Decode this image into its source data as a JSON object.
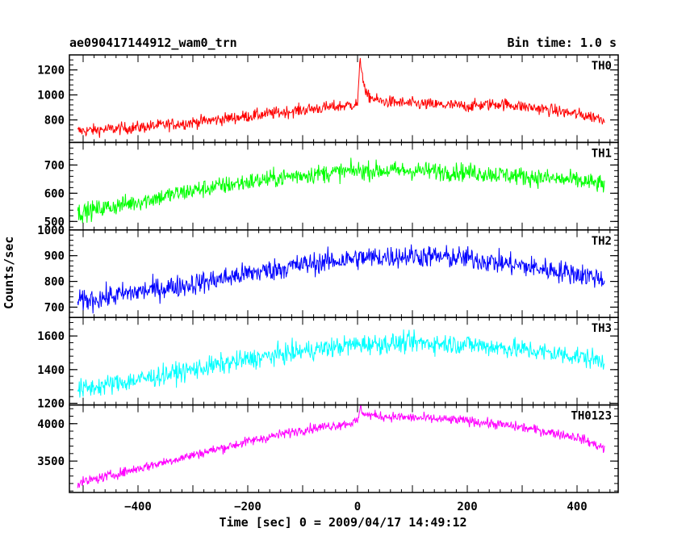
{
  "header": {
    "title": "ae090417144912_wam0_trn",
    "bin_time": "Bin time: 1.0 s"
  },
  "chart_data": {
    "type": "line",
    "xlabel": "Time [sec] 0 = 2009/04/17 14:49:12",
    "ylabel": "Counts/sec",
    "xlim": [
      -525,
      475
    ],
    "x_ticks": [
      -400,
      -200,
      0,
      200,
      400
    ],
    "panels": [
      {
        "name": "TH0",
        "color": "#ff0000",
        "ylim": [
          620,
          1320
        ],
        "y_ticks": [
          800,
          1000,
          1200
        ],
        "x": [
          -510,
          -400,
          -300,
          -200,
          -100,
          -20,
          0,
          5,
          15,
          40,
          100,
          200,
          260,
          350,
          450
        ],
        "values": [
          710,
          740,
          780,
          830,
          880,
          915,
          930,
          1280,
          1000,
          950,
          930,
          910,
          930,
          880,
          810
        ],
        "noise": 45
      },
      {
        "name": "TH1",
        "color": "#00ff00",
        "ylim": [
          470,
          780
        ],
        "y_ticks": [
          500,
          600,
          700
        ],
        "x": [
          -510,
          -400,
          -300,
          -200,
          -100,
          0,
          100,
          200,
          300,
          400,
          450
        ],
        "values": [
          530,
          570,
          610,
          640,
          665,
          680,
          680,
          675,
          660,
          645,
          630
        ],
        "noise": 30
      },
      {
        "name": "TH2",
        "color": "#0000ff",
        "ylim": [
          660,
          1000
        ],
        "y_ticks": [
          700,
          800,
          900,
          1000
        ],
        "x": [
          -510,
          -400,
          -300,
          -200,
          -100,
          0,
          100,
          200,
          300,
          400,
          450
        ],
        "values": [
          720,
          760,
          790,
          830,
          865,
          890,
          900,
          890,
          860,
          830,
          810
        ],
        "noise": 40
      },
      {
        "name": "TH3",
        "color": "#00ffff",
        "ylim": [
          1190,
          1710
        ],
        "y_ticks": [
          1200,
          1400,
          1600
        ],
        "x": [
          -510,
          -400,
          -300,
          -200,
          -100,
          0,
          100,
          200,
          300,
          400,
          450
        ],
        "values": [
          1280,
          1340,
          1400,
          1460,
          1510,
          1550,
          1560,
          1550,
          1520,
          1480,
          1450
        ],
        "noise": 55
      },
      {
        "name": "TH0123",
        "color": "#ff00ff",
        "ylim": [
          3080,
          4250
        ],
        "y_ticks": [
          3500,
          4000
        ],
        "x": [
          -510,
          -400,
          -300,
          -200,
          -100,
          -20,
          0,
          5,
          15,
          40,
          100,
          200,
          300,
          400,
          450
        ],
        "values": [
          3200,
          3400,
          3580,
          3760,
          3920,
          4000,
          4030,
          4200,
          4120,
          4100,
          4080,
          4040,
          3950,
          3820,
          3670
        ],
        "noise": 60
      }
    ]
  }
}
